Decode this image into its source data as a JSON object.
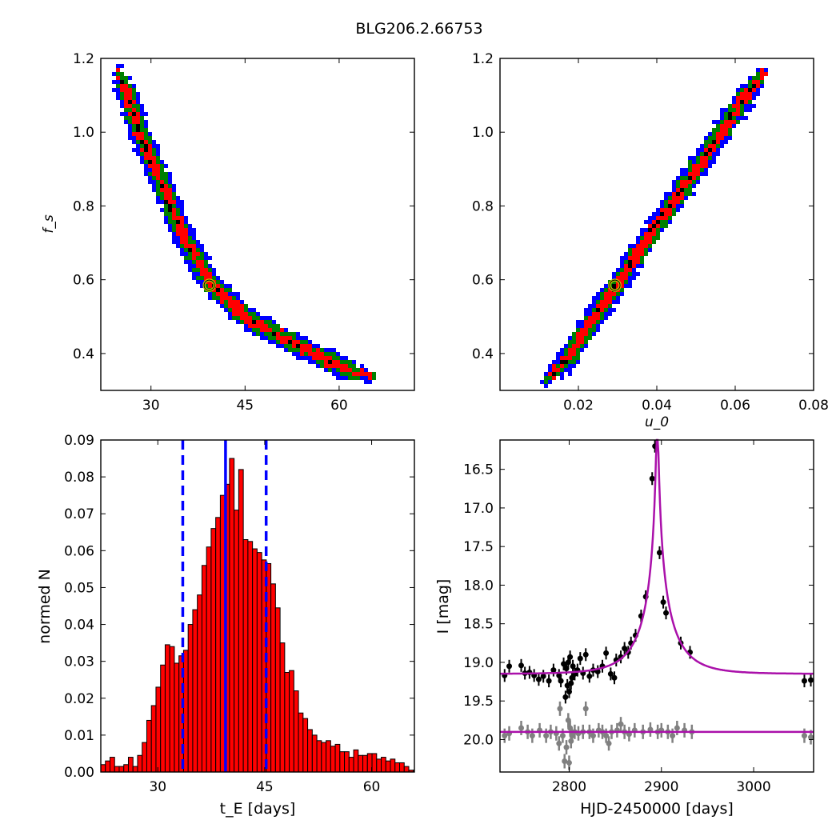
{
  "figure": {
    "title": "BLG206.2.66753"
  },
  "chart_data": [
    {
      "type": "heatmap",
      "panel": "top-left",
      "xlabel": "",
      "ylabel": "f_s",
      "xlim": [
        22,
        72
      ],
      "ylim": [
        0.3,
        1.2
      ],
      "xticks": [
        30,
        45,
        60
      ],
      "xticklabels": [
        "30",
        "45",
        "60"
      ],
      "yticks": [
        0.4,
        0.6,
        0.8,
        1.0,
        1.2
      ],
      "yticklabels": [
        "0.4",
        "0.6",
        "0.8",
        "1.0",
        "1.2"
      ],
      "band": {
        "ridge": [
          [
            24.5,
            1.17
          ],
          [
            26,
            1.1
          ],
          [
            28,
            1.0
          ],
          [
            31,
            0.88
          ],
          [
            35,
            0.72
          ],
          [
            39,
            0.6
          ],
          [
            45,
            0.5
          ],
          [
            55,
            0.41
          ],
          [
            60,
            0.37
          ],
          [
            65,
            0.34
          ]
        ]
      },
      "best_fit": {
        "x": 39.3,
        "y": 0.585
      },
      "colors": {
        "outer": "#0000ff",
        "middle": "#008000",
        "inner": "#ff0000",
        "core": "#000000",
        "marker": "#c8c800"
      }
    },
    {
      "type": "heatmap",
      "panel": "top-right",
      "xlabel": "u_0",
      "ylabel": "",
      "xlim": [
        0.0,
        0.08
      ],
      "ylim": [
        0.3,
        1.2
      ],
      "xticks": [
        0.02,
        0.04,
        0.06,
        0.08
      ],
      "xticklabels": [
        "0.02",
        "0.04",
        "0.06",
        "0.08"
      ],
      "yticks": [
        0.4,
        0.6,
        0.8,
        1.0,
        1.2
      ],
      "yticklabels": [
        "0.4",
        "0.6",
        "0.8",
        "1.0",
        "1.2"
      ],
      "band": {
        "ridge": [
          [
            0.011,
            0.33
          ],
          [
            0.016,
            0.38
          ],
          [
            0.021,
            0.46
          ],
          [
            0.026,
            0.54
          ],
          [
            0.03,
            0.6
          ],
          [
            0.036,
            0.7
          ],
          [
            0.042,
            0.79
          ],
          [
            0.048,
            0.88
          ],
          [
            0.055,
            0.99
          ],
          [
            0.062,
            1.1
          ],
          [
            0.067,
            1.17
          ]
        ]
      },
      "best_fit": {
        "x": 0.0293,
        "y": 0.585
      },
      "colors": {
        "outer": "#0000ff",
        "middle": "#008000",
        "inner": "#ff0000",
        "core": "#000000",
        "marker": "#c8c800"
      }
    },
    {
      "type": "bar",
      "panel": "bottom-left",
      "xlabel": "t_E [days]",
      "ylabel": "normed N",
      "xlim": [
        22,
        66
      ],
      "ylim": [
        0,
        0.09
      ],
      "xticks": [
        30,
        45,
        60
      ],
      "xticklabels": [
        "30",
        "45",
        "60"
      ],
      "yticks": [
        0,
        0.01,
        0.02,
        0.03,
        0.04,
        0.05,
        0.06,
        0.07,
        0.08,
        0.09
      ],
      "yticklabels": [
        "0.00",
        "0.01",
        "0.02",
        "0.03",
        "0.04",
        "0.05",
        "0.06",
        "0.07",
        "0.08",
        "0.09"
      ],
      "bin_start": 22.0,
      "bin_width": 0.645,
      "values": [
        0.002,
        0.003,
        0.004,
        0.0015,
        0.0015,
        0.002,
        0.004,
        0.0015,
        0.0045,
        0.008,
        0.014,
        0.018,
        0.023,
        0.029,
        0.0345,
        0.034,
        0.0295,
        0.0315,
        0.033,
        0.04,
        0.044,
        0.048,
        0.056,
        0.061,
        0.066,
        0.069,
        0.075,
        0.078,
        0.085,
        0.071,
        0.082,
        0.063,
        0.0625,
        0.0605,
        0.0595,
        0.0575,
        0.0565,
        0.051,
        0.0445,
        0.035,
        0.027,
        0.0275,
        0.022,
        0.016,
        0.0145,
        0.0115,
        0.01,
        0.0085,
        0.008,
        0.0085,
        0.007,
        0.0075,
        0.0055,
        0.0055,
        0.004,
        0.006,
        0.0045,
        0.0045,
        0.005,
        0.005,
        0.0035,
        0.004,
        0.003,
        0.0035,
        0.0025,
        0.0025,
        0.0015,
        0.0005,
        0.0005,
        0.0005
      ],
      "vlines": [
        {
          "x": 33.5,
          "style": "dashed"
        },
        {
          "x": 39.5,
          "style": "solid"
        },
        {
          "x": 45.2,
          "style": "dashed"
        }
      ],
      "colors": {
        "bar": "#ff0000",
        "edge": "#000000",
        "vline": "#0000ff"
      }
    },
    {
      "type": "scatter",
      "panel": "bottom-right",
      "xlabel": "HJD-2450000 [days]",
      "ylabel": "I [mag]",
      "xlim": [
        2725,
        3065
      ],
      "ylim": [
        20.42,
        16.12
      ],
      "y_inverted": true,
      "xticks": [
        2800,
        2900,
        3000
      ],
      "xticklabels": [
        "2800",
        "2900",
        "3000"
      ],
      "yticks": [
        16.5,
        17.0,
        17.5,
        18.0,
        18.5,
        19.0,
        19.5,
        20.0
      ],
      "yticklabels": [
        "16.5",
        "17.0",
        "17.5",
        "18.0",
        "18.5",
        "19.0",
        "19.5",
        "20.0"
      ],
      "model": {
        "t0": 2895.5,
        "tE": 39.3,
        "u0": 0.0293,
        "fs": 0.585,
        "I_base": 19.15
      },
      "residual_baseline": 19.9,
      "series": [
        {
          "points": [
            [
              2730,
              19.17
            ],
            [
              2735,
              19.05
            ],
            [
              2748,
              19.04
            ],
            [
              2752,
              19.14
            ],
            [
              2757,
              19.13
            ],
            [
              2762,
              19.17
            ],
            [
              2767,
              19.22
            ],
            [
              2772,
              19.18
            ],
            [
              2778,
              19.24
            ],
            [
              2783,
              19.1
            ],
            [
              2789,
              19.17
            ],
            [
              2791,
              19.24
            ],
            [
              2794,
              19.02
            ],
            [
              2796,
              19.45
            ],
            [
              2797,
              19.08
            ],
            [
              2798,
              19.3
            ],
            [
              2799,
              19.0
            ],
            [
              2800,
              19.38
            ],
            [
              2801,
              18.93
            ],
            [
              2802,
              19.27
            ],
            [
              2803,
              19.2
            ],
            [
              2804,
              19.05
            ],
            [
              2806,
              19.15
            ],
            [
              2809,
              19.1
            ],
            [
              2812,
              18.95
            ],
            [
              2815,
              19.14
            ],
            [
              2818,
              18.9
            ],
            [
              2822,
              19.18
            ],
            [
              2826,
              19.1
            ],
            [
              2831,
              19.12
            ],
            [
              2836,
              19.05
            ],
            [
              2840,
              18.88
            ],
            [
              2845,
              19.15
            ],
            [
              2849,
              19.2
            ],
            [
              2851,
              18.97
            ],
            [
              2856,
              18.93
            ],
            [
              2860,
              18.82
            ],
            [
              2864,
              18.87
            ],
            [
              2867,
              18.75
            ],
            [
              2872,
              18.65
            ],
            [
              2878,
              18.4
            ],
            [
              2883,
              18.15
            ],
            [
              2890,
              16.62
            ],
            [
              2893,
              16.2
            ],
            [
              2898,
              17.58
            ],
            [
              2902,
              18.22
            ],
            [
              2905,
              18.36
            ],
            [
              2921,
              18.75
            ],
            [
              2931,
              18.87
            ],
            [
              3055,
              19.24
            ],
            [
              3062,
              19.23
            ]
          ]
        },
        {
          "points": [
            [
              2730,
              19.95
            ],
            [
              2735,
              19.92
            ],
            [
              2748,
              19.85
            ],
            [
              2755,
              19.9
            ],
            [
              2760,
              19.95
            ],
            [
              2768,
              19.88
            ],
            [
              2775,
              19.95
            ],
            [
              2780,
              19.9
            ],
            [
              2786,
              19.92
            ],
            [
              2789,
              20.05
            ],
            [
              2790,
              19.6
            ],
            [
              2793,
              19.95
            ],
            [
              2795,
              20.28
            ],
            [
              2797,
              20.1
            ],
            [
              2799,
              19.75
            ],
            [
              2800,
              20.3
            ],
            [
              2801,
              19.85
            ],
            [
              2802,
              20.02
            ],
            [
              2803,
              19.95
            ],
            [
              2806,
              19.9
            ],
            [
              2810,
              19.92
            ],
            [
              2815,
              19.9
            ],
            [
              2818,
              19.6
            ],
            [
              2822,
              19.9
            ],
            [
              2826,
              19.95
            ],
            [
              2832,
              19.88
            ],
            [
              2836,
              19.9
            ],
            [
              2840,
              19.95
            ],
            [
              2843,
              20.05
            ],
            [
              2846,
              19.9
            ],
            [
              2852,
              19.88
            ],
            [
              2856,
              19.8
            ],
            [
              2860,
              19.9
            ],
            [
              2865,
              19.93
            ],
            [
              2871,
              19.88
            ],
            [
              2880,
              19.9
            ],
            [
              2888,
              19.87
            ],
            [
              2896,
              19.9
            ],
            [
              2900,
              19.88
            ],
            [
              2907,
              19.9
            ],
            [
              2912,
              19.95
            ],
            [
              2917,
              19.85
            ],
            [
              2925,
              19.88
            ],
            [
              2933,
              19.9
            ],
            [
              3055,
              19.95
            ],
            [
              3062,
              19.97
            ]
          ]
        }
      ],
      "colors": {
        "data": "#000000",
        "residual": "#808080",
        "model": "#aa10aa"
      }
    }
  ]
}
